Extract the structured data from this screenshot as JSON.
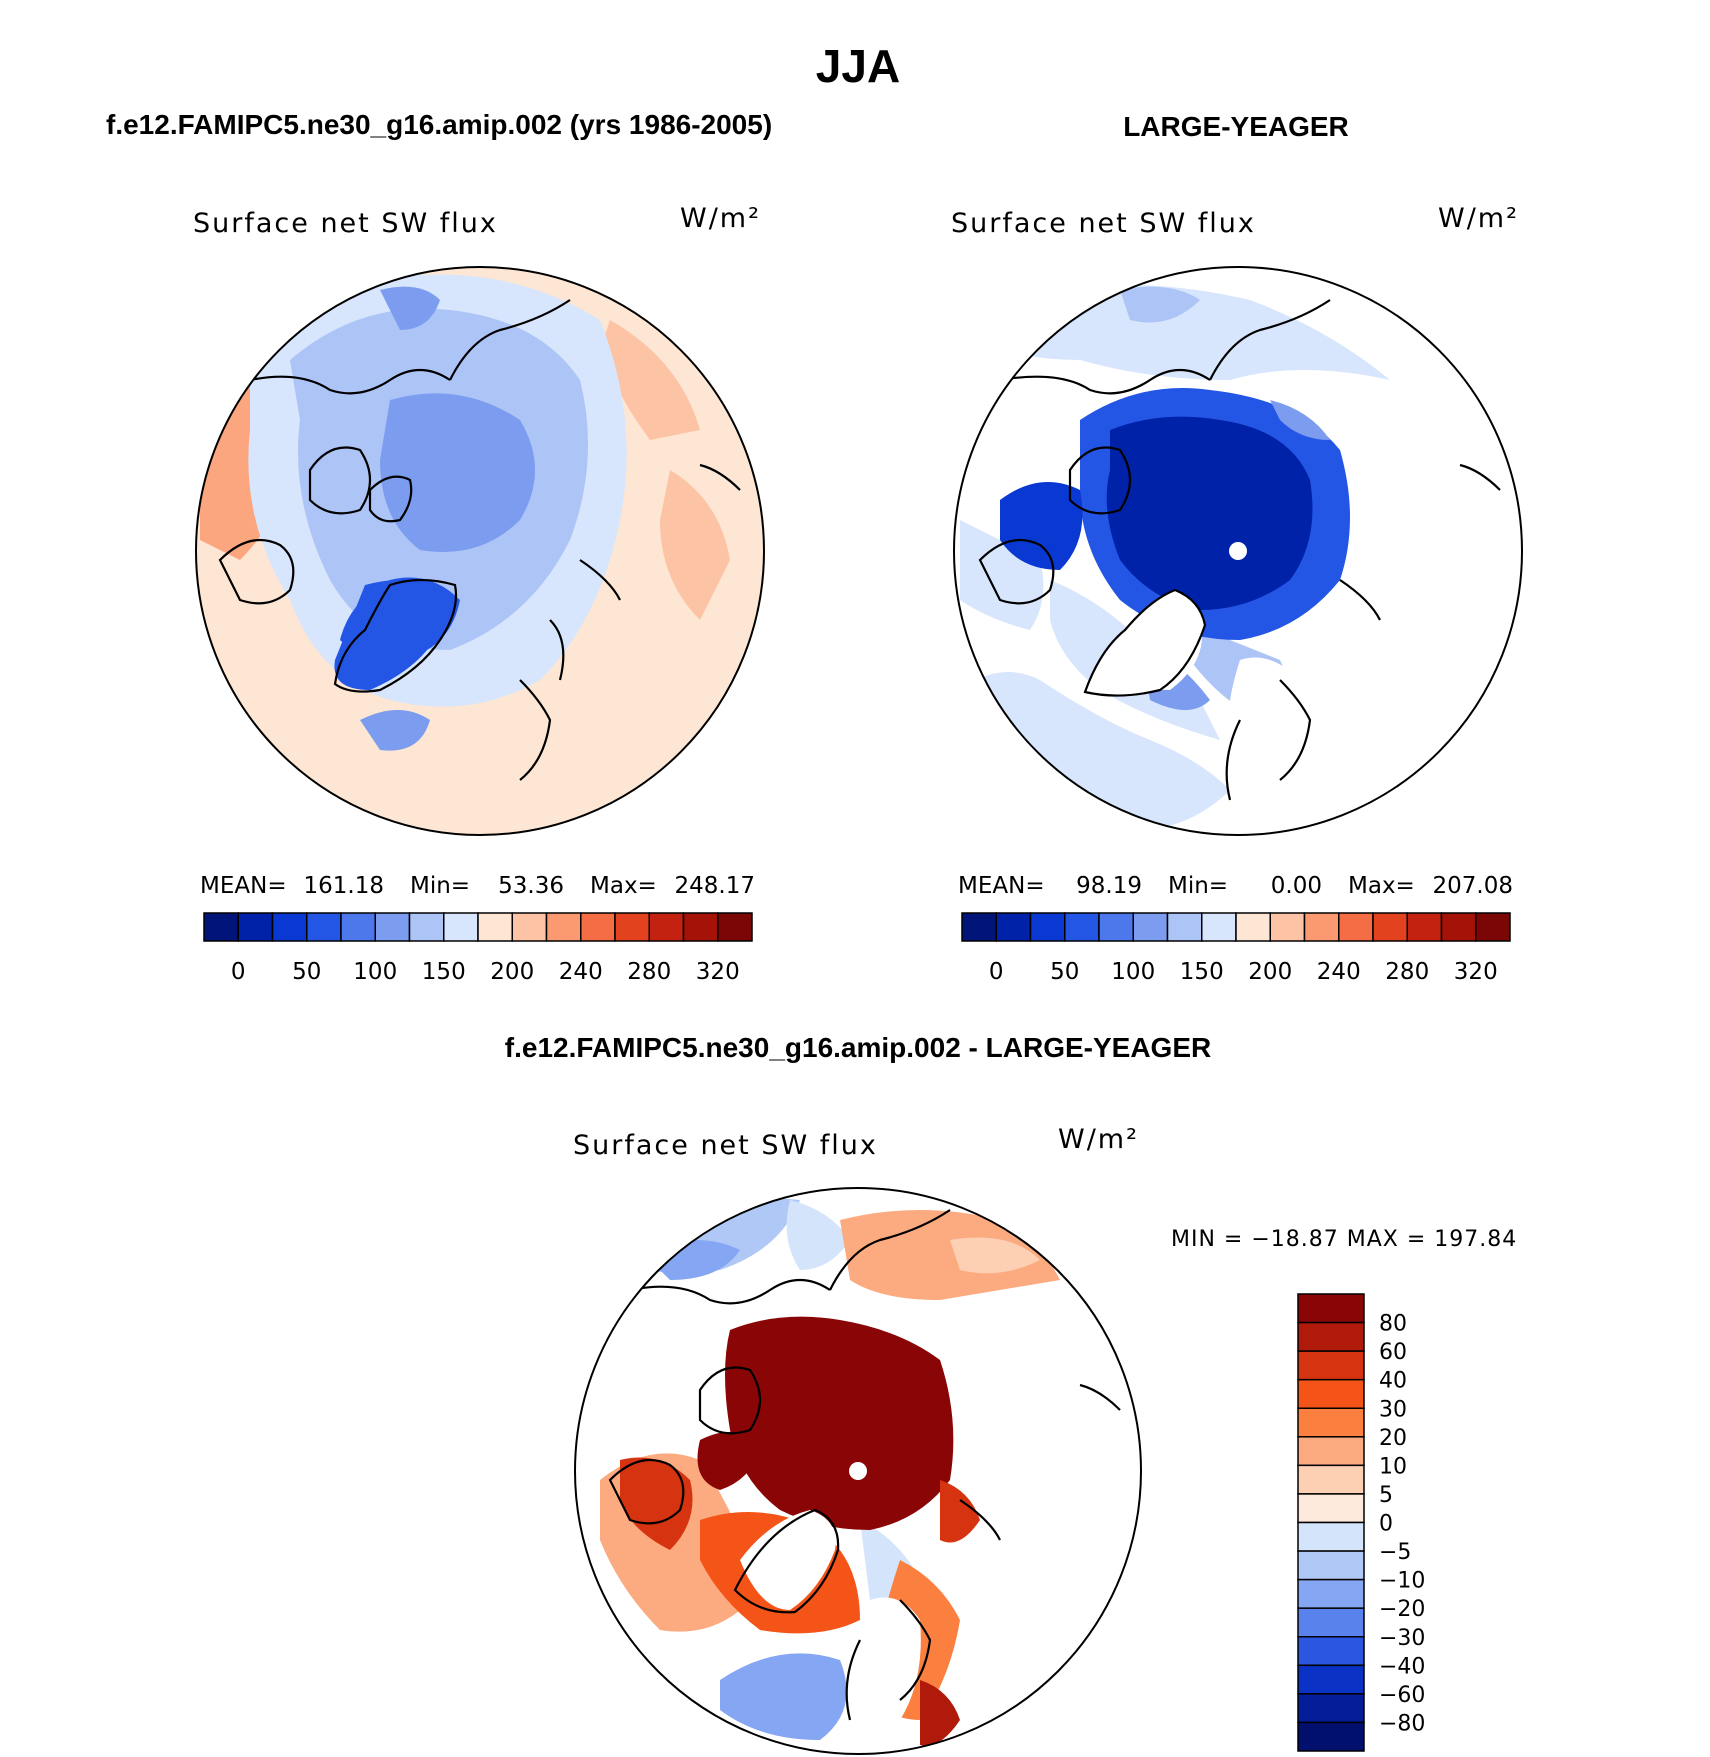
{
  "chart_data": [
    {
      "type": "heatmap",
      "projection": "polar-stereographic (north pole)",
      "header_title": "f.e12.FAMIPC5.ne30_g16.amip.002 (yrs 1986-2005)",
      "title": "Surface net SW flux",
      "units": "W/m²",
      "stats": {
        "mean_label": "MEAN=",
        "mean": "161.18",
        "min_label": "Min=",
        "min": "53.36",
        "max_label": "Max=",
        "max": "248.17"
      },
      "colorbar_ticks": [
        "0",
        "50",
        "100",
        "150",
        "200",
        "240",
        "280",
        "320"
      ],
      "colorbar_colors": [
        "#00147a",
        "#0022a8",
        "#0a38d2",
        "#2456e6",
        "#4c78ec",
        "#7c9cf0",
        "#adc4f6",
        "#d7e6fc",
        "#fde6d4",
        "#fcc3a4",
        "#fb9a70",
        "#f56d44",
        "#e2421e",
        "#c42210",
        "#a51208",
        "#7a0606"
      ]
    },
    {
      "type": "heatmap",
      "projection": "polar-stereographic (north pole)",
      "header_title": "LARGE-YEAGER",
      "title": "Surface net SW flux",
      "units": "W/m²",
      "stats": {
        "mean_label": "MEAN=",
        "mean": "98.19",
        "min_label": "Min=",
        "min": "0.00",
        "max_label": "Max=",
        "max": "207.08"
      },
      "colorbar_ticks": [
        "0",
        "50",
        "100",
        "150",
        "200",
        "240",
        "280",
        "320"
      ],
      "colorbar_colors": [
        "#00147a",
        "#0022a8",
        "#0a38d2",
        "#2456e6",
        "#4c78ec",
        "#7c9cf0",
        "#adc4f6",
        "#d7e6fc",
        "#fde6d4",
        "#fcc3a4",
        "#fb9a70",
        "#f56d44",
        "#e2421e",
        "#c42210",
        "#a51208",
        "#7a0606"
      ]
    },
    {
      "type": "heatmap",
      "projection": "polar-stereographic (north pole)",
      "header_title": "f.e12.FAMIPC5.ne30_g16.amip.002 - LARGE-YEAGER",
      "title": "Surface net SW flux",
      "units": "W/m²",
      "min_max_text": "MIN = −18.87 MAX = 197.84",
      "colorbar_ticks": [
        "80",
        "60",
        "40",
        "30",
        "20",
        "10",
        "5",
        "0",
        "−5",
        "−10",
        "−20",
        "−30",
        "−40",
        "−60",
        "−80"
      ],
      "colorbar_colors": [
        "#8a0505",
        "#b01a0a",
        "#d63410",
        "#f45418",
        "#fb8040",
        "#fcaa80",
        "#fdd0b4",
        "#feeadc",
        "#d4e4fb",
        "#b0c8f6",
        "#85a6f2",
        "#5a82ec",
        "#2a56e0",
        "#0a32c4",
        "#041e9a",
        "#00106c"
      ]
    }
  ],
  "figure": {
    "season": "JJA"
  }
}
